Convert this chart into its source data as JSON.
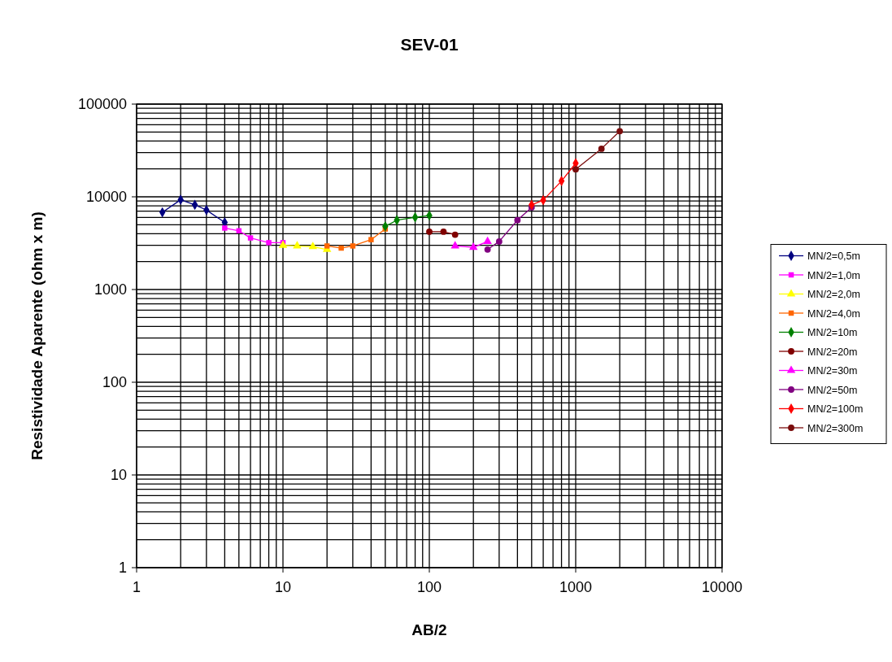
{
  "chart_data": {
    "type": "line",
    "title": "SEV-01",
    "xlabel": "AB/2",
    "ylabel": "Resistividade Aparente (ohm x m)",
    "log": "xy",
    "grid": true,
    "legend": "right",
    "xlim": [
      1,
      10000
    ],
    "xticks": [
      1,
      10,
      100,
      1000,
      10000
    ],
    "ylim": [
      1,
      100000
    ],
    "yticks": [
      1,
      10,
      100,
      1000,
      10000,
      100000
    ],
    "series": [
      {
        "name": "MN/2=0,5m",
        "color": "#000080",
        "marker": "diamond",
        "x": [
          1.5,
          2,
          2.5,
          3,
          4
        ],
        "values": [
          6800,
          9300,
          8200,
          7200,
          5300
        ]
      },
      {
        "name": "MN/2=1,0m",
        "color": "#ff00ff",
        "marker": "square",
        "x": [
          4,
          5,
          6,
          8,
          10
        ],
        "values": [
          4600,
          4300,
          3600,
          3200,
          3200
        ]
      },
      {
        "name": "MN/2=2,0m",
        "color": "#ffff00",
        "marker": "triangle",
        "x": [
          10,
          12.5,
          16,
          20
        ],
        "values": [
          3000,
          2950,
          2900,
          2700
        ]
      },
      {
        "name": "MN/2=4,0m",
        "color": "#ff6600",
        "marker": "square",
        "x": [
          20,
          25,
          30,
          40,
          50
        ],
        "values": [
          2950,
          2800,
          2950,
          3450,
          4500
        ]
      },
      {
        "name": "MN/2=10m",
        "color": "#008000",
        "marker": "diamond",
        "x": [
          50,
          60,
          80,
          100
        ],
        "values": [
          4800,
          5600,
          6000,
          6300
        ]
      },
      {
        "name": "MN/2=20m",
        "color": "#800000",
        "marker": "circle",
        "x": [
          100,
          125,
          150
        ],
        "values": [
          4200,
          4200,
          3900
        ]
      },
      {
        "name": "MN/2=30m",
        "color": "#ff00ff",
        "marker": "triangle",
        "x": [
          150,
          200,
          250
        ],
        "values": [
          2950,
          2850,
          3300
        ]
      },
      {
        "name": "MN/2=50m",
        "color": "#800080",
        "marker": "circle",
        "x": [
          250,
          300,
          400,
          500
        ],
        "values": [
          2700,
          3300,
          5600,
          7700
        ]
      },
      {
        "name": "MN/2=100m",
        "color": "#ff0000",
        "marker": "diamond",
        "x": [
          500,
          600,
          800,
          1000
        ],
        "values": [
          8200,
          9200,
          14800,
          23000
        ]
      },
      {
        "name": "MN/2=300m",
        "color": "#7a0c0c",
        "marker": "circle",
        "x": [
          1000,
          1500,
          2000
        ],
        "values": [
          19800,
          33000,
          51000
        ]
      }
    ]
  }
}
